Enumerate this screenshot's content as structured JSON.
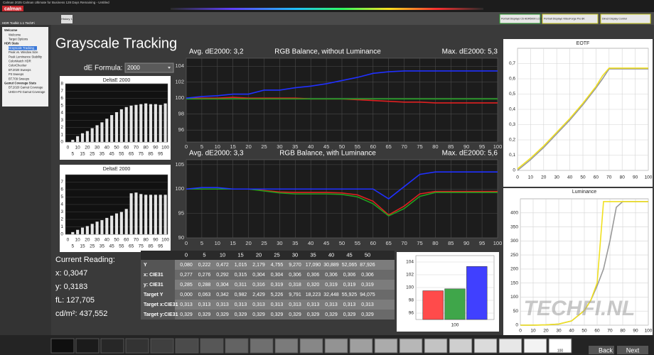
{
  "app": {
    "window_title": "Calman 2025 Calman Ultimate for Business 128 Days Remaining - Untitled",
    "logo": "calman",
    "tab": "History 1",
    "devices": [
      "Portrait Displays C6 HDR5000 LCD (LED White)",
      "Portrait Displays VideoForge Pro 8K",
      "Direct Display Control"
    ]
  },
  "sidebar": {
    "title": "HDR Toolkit 1.1 TechFi",
    "items": [
      "Welcome",
      "Welcome",
      "Target Options",
      "HDR Stats",
      "Grayscale Tracking",
      "Peak vs. Window Size",
      "Peak Luminance Stability",
      "ColorMatch HDR",
      "ColorChecker",
      "BT.2020 Sweeps",
      "P3 Sweeps",
      "BT.709 Sweeps",
      "Gamut Coverage Stats",
      "BT.2020 Gamut Coverage",
      "UHDA-P3 Gamut Coverage"
    ]
  },
  "page": {
    "title": "Grayscale Tracking",
    "formula_label": "dE Formula:",
    "formula_value": "2000"
  },
  "reading": {
    "title": "Current Reading:",
    "lines": [
      "x: 0,3047",
      "y: 0,3183",
      "fL: 127,705",
      "cd/m²: 437,552"
    ]
  },
  "table": {
    "header": [
      "0",
      "5",
      "10",
      "15",
      "20",
      "25",
      "30",
      "35",
      "40",
      "45",
      "50"
    ],
    "rows": [
      {
        "label": "Y",
        "values": [
          "0,080",
          "0,222",
          "0,472",
          "1,015",
          "2,179",
          "4,755",
          "9,270",
          "17,090",
          "30,889",
          "52,065",
          "87,926"
        ]
      },
      {
        "label": "x: CIE31",
        "values": [
          "0,277",
          "0,276",
          "0,292",
          "0,315",
          "0,304",
          "0,304",
          "0,306",
          "0,306",
          "0,306",
          "0,306",
          "0,306"
        ]
      },
      {
        "label": "y: CIE31",
        "values": [
          "0,285",
          "0,288",
          "0,304",
          "0,311",
          "0,316",
          "0,319",
          "0,318",
          "0,320",
          "0,319",
          "0,319",
          "0,319"
        ]
      },
      {
        "label": "Target Y",
        "values": [
          "0,000",
          "0,063",
          "0,342",
          "0,982",
          "2,429",
          "5,226",
          "9,791",
          "18,223",
          "32,448",
          "55,925",
          "94,075"
        ]
      },
      {
        "label": "Target x:CIE31",
        "values": [
          "0,313",
          "0,313",
          "0,313",
          "0,313",
          "0,313",
          "0,313",
          "0,313",
          "0,313",
          "0,313",
          "0,313",
          "0,313"
        ]
      },
      {
        "label": "Target y:CIE31",
        "values": [
          "0,329",
          "0,329",
          "0,329",
          "0,329",
          "0,329",
          "0,329",
          "0,329",
          "0,329",
          "0,329",
          "0,329",
          "0,329"
        ]
      }
    ]
  },
  "footer": {
    "swatch_label": "100",
    "back": "Back",
    "next": "Next"
  },
  "watermark": "TECHFI.NL",
  "chart_data": [
    {
      "type": "bar",
      "title": "DeltaE 2000",
      "categories": [
        "0",
        "5",
        "10",
        "15",
        "20",
        "25",
        "30",
        "35",
        "40",
        "45",
        "50",
        "55",
        "60",
        "65",
        "70",
        "75",
        "80",
        "85",
        "90",
        "95",
        "100"
      ],
      "values": [
        0,
        0.3,
        0.8,
        1.2,
        1.5,
        1.9,
        2.3,
        2.7,
        3.2,
        3.7,
        4.1,
        4.5,
        4.8,
        5.0,
        5.1,
        5.2,
        5.3,
        5.2,
        5.2,
        5.1,
        5.3
      ],
      "color": "#e6e6e6",
      "ylim": [
        0,
        8
      ],
      "yticks": [
        0,
        1,
        2,
        3,
        4,
        5,
        6,
        7,
        8
      ],
      "grid": true
    },
    {
      "type": "bar",
      "title": "DeltaE 2000",
      "categories": [
        "0",
        "5",
        "10",
        "15",
        "20",
        "25",
        "30",
        "35",
        "40",
        "45",
        "50",
        "55",
        "60",
        "65",
        "70",
        "75",
        "80",
        "85",
        "90",
        "95",
        "100"
      ],
      "values": [
        0,
        0.3,
        0.6,
        0.9,
        1.1,
        1.4,
        1.7,
        1.9,
        2.2,
        2.5,
        2.8,
        3.0,
        3.4,
        5.5,
        5.6,
        5.4,
        5.3,
        5.3,
        5.3,
        5.3,
        5.3
      ],
      "color": "#e6e6e6",
      "ylim": [
        0,
        8
      ],
      "yticks": [
        0,
        1,
        2,
        3,
        4,
        5,
        6,
        7
      ],
      "grid": true
    },
    {
      "type": "line",
      "title": "RGB Balance, without Luminance",
      "avg_label": "Avg. dE2000: 3,2",
      "max_label": "Max. dE2000: 5,3",
      "x": [
        0,
        5,
        10,
        15,
        20,
        25,
        30,
        35,
        40,
        45,
        50,
        55,
        60,
        65,
        70,
        75,
        80,
        85,
        90,
        95,
        100
      ],
      "xlim": [
        0,
        100
      ],
      "xticks": [
        0,
        5,
        10,
        15,
        20,
        25,
        30,
        35,
        40,
        45,
        50,
        55,
        60,
        65,
        70,
        75,
        80,
        85,
        90,
        95,
        100
      ],
      "ylim": [
        94.5,
        105
      ],
      "yticks": [
        96,
        98,
        100,
        102,
        104
      ],
      "grid": true,
      "series": [
        {
          "color": "#e02020",
          "values": [
            100,
            100,
            100,
            100.1,
            100,
            100,
            100,
            100,
            99.9,
            99.9,
            99.9,
            99.8,
            99.7,
            99.6,
            99.5,
            99.5,
            99.4,
            99.4,
            99.4,
            99.4,
            99.4
          ]
        },
        {
          "color": "#20a020",
          "values": [
            99.9,
            99.9,
            99.9,
            99.9,
            99.9,
            99.9,
            99.9,
            99.9,
            99.9,
            99.9,
            99.9,
            99.9,
            99.9,
            99.9,
            99.9,
            99.9,
            99.9,
            99.9,
            99.9,
            99.9,
            99.9
          ]
        },
        {
          "color": "#2030ff",
          "values": [
            100,
            100.2,
            100.3,
            100.5,
            100.5,
            101,
            101,
            101.3,
            101.5,
            101.8,
            102.2,
            102.6,
            103.1,
            103.3,
            103.4,
            103.4,
            103.4,
            103.4,
            103.4,
            103.4,
            103.4
          ]
        }
      ]
    },
    {
      "type": "line",
      "title": "RGB Balance, with Luminance",
      "avg_label": "Avg. dE2000: 3,3",
      "max_label": "Max. dE2000: 5,6",
      "x": [
        0,
        5,
        10,
        15,
        20,
        25,
        30,
        35,
        40,
        45,
        50,
        55,
        60,
        65,
        70,
        75,
        80,
        85,
        90,
        95,
        100
      ],
      "xlim": [
        0,
        100
      ],
      "xticks": [
        0,
        5,
        10,
        15,
        20,
        25,
        30,
        35,
        40,
        45,
        50,
        55,
        60,
        65,
        70,
        75,
        80,
        85,
        90,
        95,
        100
      ],
      "ylim": [
        90,
        106
      ],
      "yticks": [
        90,
        95,
        100,
        105
      ],
      "grid": true,
      "series": [
        {
          "color": "#e02020",
          "values": [
            100,
            100,
            100,
            100,
            100,
            99.7,
            99.4,
            99.3,
            99.3,
            99.3,
            99.2,
            98.8,
            97.5,
            94.7,
            96.5,
            99,
            99.5,
            99.5,
            99.5,
            99.5,
            99.5
          ]
        },
        {
          "color": "#20a020",
          "values": [
            100,
            100,
            100,
            100,
            100,
            99.6,
            99.2,
            99,
            99,
            99,
            98.9,
            98.4,
            97,
            94.5,
            96,
            98.5,
            99.3,
            99.3,
            99.3,
            99.3,
            99.3
          ]
        },
        {
          "color": "#2030ff",
          "values": [
            100,
            100.3,
            100.3,
            100,
            100,
            100,
            100,
            100,
            100,
            100,
            100,
            100,
            100,
            98,
            100.5,
            103,
            103.5,
            103.5,
            103.5,
            103.5,
            103.5
          ]
        }
      ]
    },
    {
      "type": "line",
      "title": "EOTF",
      "x": [
        0,
        10,
        20,
        30,
        40,
        50,
        60,
        65,
        70,
        80,
        90,
        100
      ],
      "xlim": [
        0,
        100
      ],
      "xticks": [
        0,
        10,
        20,
        30,
        40,
        50,
        60,
        70,
        80,
        90,
        100
      ],
      "ylim": [
        0,
        0.8
      ],
      "yticks": [
        0,
        {
          "value": 0.1,
          "label": "0,1"
        },
        {
          "value": 0.2,
          "label": "0,2"
        },
        {
          "value": 0.3,
          "label": "0,3"
        },
        {
          "value": 0.4,
          "label": "0,4"
        },
        {
          "value": 0.5,
          "label": "0,5"
        },
        {
          "value": 0.6,
          "label": "0,6"
        },
        {
          "value": 0.7,
          "label": "0,7"
        }
      ],
      "grid": true,
      "series": [
        {
          "color": "#999999",
          "values": [
            0,
            0.07,
            0.15,
            0.24,
            0.33,
            0.43,
            0.54,
            0.6,
            0.665,
            0.665,
            0.665,
            0.665
          ]
        },
        {
          "color": "#f0e020",
          "values": [
            0.01,
            0.08,
            0.16,
            0.25,
            0.34,
            0.44,
            0.55,
            0.62,
            0.67,
            0.67,
            0.67,
            0.67
          ]
        }
      ]
    },
    {
      "type": "line",
      "title": "Luminance",
      "x": [
        0,
        10,
        20,
        30,
        40,
        50,
        55,
        60,
        65,
        70,
        75,
        80,
        90,
        100
      ],
      "xlim": [
        0,
        100
      ],
      "xticks": [
        0,
        10,
        20,
        30,
        40,
        50,
        60,
        70,
        80,
        90,
        100
      ],
      "ylim": [
        0,
        450
      ],
      "yticks": [
        0,
        50,
        100,
        150,
        200,
        250,
        300,
        350,
        400
      ],
      "grid": true,
      "series": [
        {
          "color": "#999999",
          "values": [
            0,
            0.2,
            1,
            4,
            15,
            52,
            88,
            140,
            200,
            300,
            420,
            440,
            440,
            440
          ]
        },
        {
          "color": "#f0e020",
          "values": [
            0,
            0.2,
            1,
            4,
            15,
            52,
            88,
            150,
            440,
            440,
            440,
            440,
            440,
            440
          ]
        }
      ]
    },
    {
      "type": "bar",
      "categories": [
        "100"
      ],
      "ylim": [
        95,
        105
      ],
      "yticks": [
        96,
        98,
        100,
        102,
        104
      ],
      "grid": true,
      "series": [
        {
          "color": "#ff4b4b",
          "values": [
            99.5
          ]
        },
        {
          "color": "#3fa64a",
          "values": [
            99.8
          ]
        },
        {
          "color": "#4040ff",
          "values": [
            103.3
          ]
        }
      ]
    }
  ]
}
